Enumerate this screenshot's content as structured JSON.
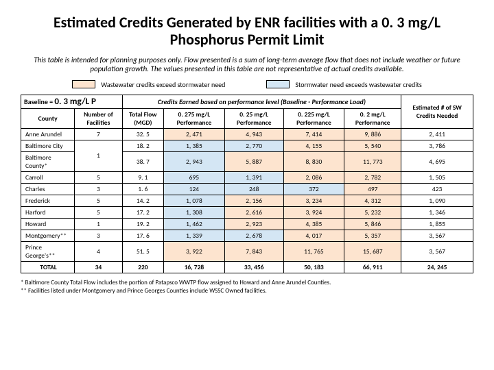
{
  "title": "Estimated Credits Generated by ENR facilities with a 0. 3 mg/L Phosphorus Permit Limit",
  "caption": "This table is intended for planning purposes only. Flow presented is a sum of long-term average flow that does not include weather or future population growth. The values presented in this table are not representative of actual credits available.",
  "legend": {
    "left": {
      "color": "#fde4cf",
      "label": "Wastewater credits exceed stormwater need"
    },
    "right": {
      "color": "#d4e6f4",
      "label": "Stormwater need exceeds wastewater credits"
    }
  },
  "colors": {
    "highlight_orange": "#fde4cf",
    "highlight_blue": "#d4e6f4"
  },
  "headers": {
    "baseline_label": "Baseline =",
    "baseline_value": "0. 3 mg/L P",
    "credits_header": "Credits Earned based on performance level (Baseline - Performance Load)",
    "county": "County",
    "num_facilities": "Number of Facilities",
    "total_flow": "Total Flow (MGD)",
    "perf1": "0. 275 mg/L Performance",
    "perf2": "0. 25 mg/L Performance",
    "perf3": "0. 225 mg/L Performance",
    "perf4": "0. 2 mg/L Performance",
    "sw_needed": "Estimated # of SW Credits Needed"
  },
  "rows": [
    {
      "county": "Anne Arundel",
      "nf": "7",
      "flow": "32. 5",
      "p1": "2, 471",
      "p2": "4, 943",
      "p3": "7, 414",
      "p4": "9, 886",
      "sw": "2, 411",
      "hl": [
        1,
        1,
        1,
        1
      ]
    },
    {
      "county": "Baltimore City",
      "nf": "",
      "flow": "18. 2",
      "p1": "1, 385",
      "p2": "2, 770",
      "p3": "4, 155",
      "p4": "5, 540",
      "sw": "3, 786",
      "hl": [
        2,
        2,
        1,
        1
      ]
    },
    {
      "county": "Baltimore County*",
      "nf": "",
      "flow": "38. 7",
      "p1": "2, 943",
      "p2": "5, 887",
      "p3": "8, 830",
      "p4": "11, 773",
      "sw": "4, 695",
      "hl": [
        2,
        1,
        1,
        1
      ]
    },
    {
      "county": "Carroll",
      "nf": "5",
      "flow": "9. 1",
      "p1": "695",
      "p2": "1, 391",
      "p3": "2, 086",
      "p4": "2, 782",
      "sw": "1, 505",
      "hl": [
        2,
        2,
        1,
        1
      ]
    },
    {
      "county": "Charles",
      "nf": "3",
      "flow": "1. 6",
      "p1": "124",
      "p2": "248",
      "p3": "372",
      "p4": "497",
      "sw": "423",
      "hl": [
        2,
        2,
        2,
        1
      ]
    },
    {
      "county": "Frederick",
      "nf": "5",
      "flow": "14. 2",
      "p1": "1, 078",
      "p2": "2, 156",
      "p3": "3, 234",
      "p4": "4, 312",
      "sw": "1, 090",
      "hl": [
        2,
        1,
        1,
        1
      ]
    },
    {
      "county": "Harford",
      "nf": "5",
      "flow": "17. 2",
      "p1": "1, 308",
      "p2": "2, 616",
      "p3": "3, 924",
      "p4": "5, 232",
      "sw": "1, 346",
      "hl": [
        2,
        1,
        1,
        1
      ]
    },
    {
      "county": "Howard",
      "nf": "1",
      "flow": "19. 2",
      "p1": "1, 462",
      "p2": "2, 923",
      "p3": "4, 385",
      "p4": "5, 846",
      "sw": "1, 855",
      "hl": [
        2,
        1,
        1,
        1
      ]
    },
    {
      "county": "Montgomery**",
      "nf": "3",
      "flow": "17. 6",
      "p1": "1, 339",
      "p2": "2, 678",
      "p3": "4, 017",
      "p4": "5, 357",
      "sw": "3, 567",
      "hl": [
        2,
        2,
        1,
        1
      ]
    },
    {
      "county": "Prince George's**",
      "nf": "4",
      "flow": "51. 5",
      "p1": "3, 922",
      "p2": "7, 843",
      "p3": "11, 765",
      "p4": "15, 687",
      "sw": "3, 567",
      "hl": [
        1,
        1,
        1,
        1
      ]
    }
  ],
  "merged_nf": {
    "start": 1,
    "span": 2,
    "value": "1"
  },
  "total": {
    "label": "TOTAL",
    "nf": "34",
    "flow": "220",
    "p1": "16, 728",
    "p2": "33, 456",
    "p3": "50, 183",
    "p4": "66, 911",
    "sw": "24, 245"
  },
  "footnotes": {
    "f1": "* Baltimore County Total Flow includes the portion of Patapsco WWTP flow assigned to Howard and Anne Arundel Counties.",
    "f2": "** Facilities listed under Montgomery and Prince Georges Counties include WSSC Owned facilities."
  }
}
